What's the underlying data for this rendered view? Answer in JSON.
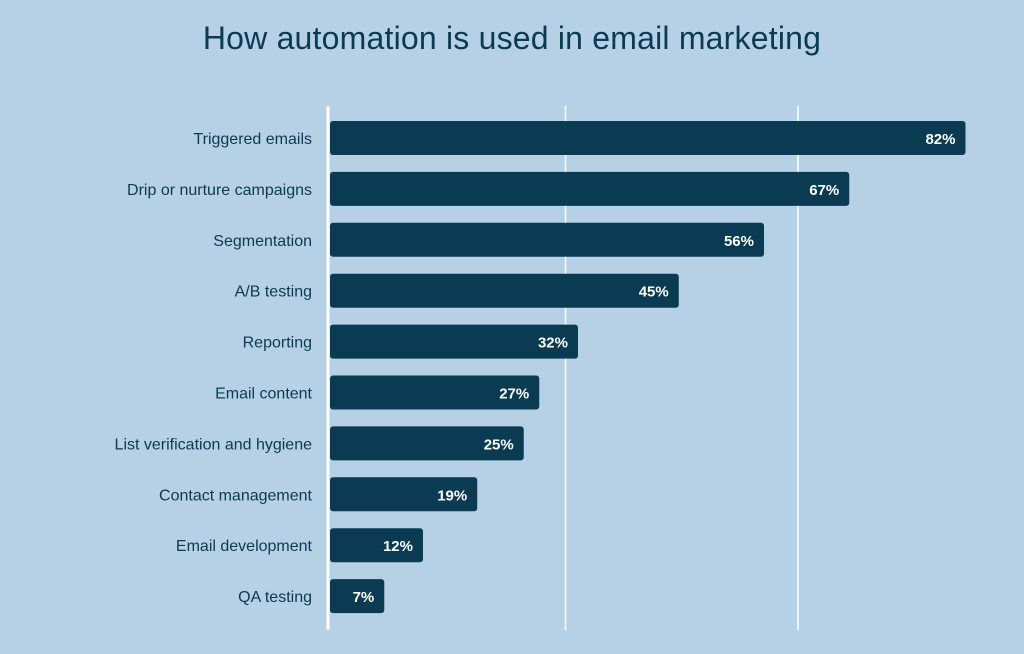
{
  "colors": {
    "background": "#b6d0e5",
    "bar": "#0b3a53",
    "gridline": "#ffffff",
    "text": "#0b3a53",
    "value_text": "#ffffff"
  },
  "chart_data": {
    "type": "bar",
    "orientation": "horizontal",
    "title": "How automation is used in email marketing",
    "xlabel": "",
    "ylabel": "",
    "xlim": [
      0,
      100
    ],
    "grid": true,
    "legend": "none",
    "categories": [
      "Triggered emails",
      "Drip or nurture campaigns",
      "Segmentation",
      "A/B testing",
      "Reporting",
      "Email content",
      "List verification and hygiene",
      "Contact management",
      "Email development",
      "QA testing"
    ],
    "values": [
      82,
      67,
      56,
      45,
      32,
      27,
      25,
      19,
      12,
      7
    ],
    "value_labels": [
      "82%",
      "67%",
      "56%",
      "45%",
      "32%",
      "27%",
      "25%",
      "19%",
      "12%",
      "7%"
    ]
  }
}
